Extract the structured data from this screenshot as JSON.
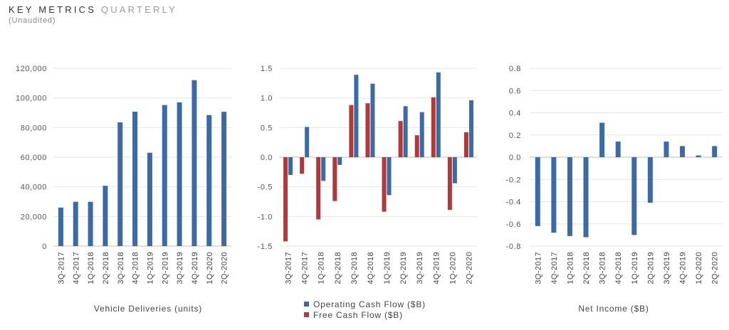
{
  "header": {
    "title_main": "KEY METRICS",
    "title_sub": "QUARTERLY",
    "subtitle": "(Unaudited)"
  },
  "colors": {
    "blue": "#3c6aa6",
    "red": "#b03a3a",
    "grid": "#e6e6e6",
    "axis": "#bdbdbd"
  },
  "chart_data": [
    {
      "type": "bar",
      "xlabel": "Vehicle Deliveries (units)",
      "categories": [
        "3Q-2017",
        "4Q-2017",
        "1Q-2018",
        "2Q-2018",
        "3Q-2018",
        "4Q-2018",
        "1Q-2019",
        "2Q-2019",
        "3Q-2019",
        "4Q-2019",
        "1Q-2020",
        "2Q-2020"
      ],
      "series": [
        {
          "values": [
            26000,
            29900,
            29900,
            40700,
            83500,
            90700,
            63000,
            95200,
            97000,
            112000,
            88400,
            90650
          ],
          "color": "#3c6aa6"
        }
      ],
      "ylim": [
        0,
        120000
      ],
      "yticks": [
        0,
        20000,
        40000,
        60000,
        80000,
        100000,
        120000
      ],
      "ytick_labels": [
        "0",
        "20,000",
        "40,000",
        "60,000",
        "80,000",
        "100,000",
        "120,000"
      ]
    },
    {
      "type": "bar",
      "xlabel": "",
      "categories": [
        "3Q-2017",
        "4Q-2017",
        "1Q-2018",
        "2Q-2018",
        "3Q-2018",
        "4Q-2018",
        "1Q-2019",
        "2Q-2019",
        "3Q-2019",
        "4Q-2019",
        "1Q-2020",
        "2Q-2020"
      ],
      "series": [
        {
          "name": "Free Cash Flow ($B)",
          "values": [
            -1.42,
            -0.28,
            -1.05,
            -0.74,
            0.88,
            0.91,
            -0.92,
            0.61,
            0.37,
            1.01,
            -0.89,
            0.42
          ],
          "color": "#b03a3a"
        },
        {
          "name": "Operating Cash Flow ($B)",
          "values": [
            -0.3,
            0.51,
            -0.4,
            -0.13,
            1.39,
            1.24,
            -0.64,
            0.86,
            0.76,
            1.43,
            -0.44,
            0.96
          ],
          "color": "#3c6aa6"
        }
      ],
      "ylim": [
        -1.5,
        1.5
      ],
      "yticks": [
        -1.5,
        -1.0,
        -0.5,
        0.0,
        0.5,
        1.0,
        1.5
      ],
      "ytick_labels": [
        "-1.5",
        "-1.0",
        "-0.5",
        "0.0",
        "0.5",
        "1.0",
        "1.5"
      ],
      "legend": {
        "placement": "bottom",
        "entries": [
          "Operating Cash Flow ($B)",
          "Free Cash Flow ($B)"
        ]
      }
    },
    {
      "type": "bar",
      "xlabel": "Net Income ($B)",
      "categories": [
        "3Q-2017",
        "4Q-2017",
        "1Q-2018",
        "2Q-2018",
        "3Q-2018",
        "4Q-2018",
        "1Q-2019",
        "2Q-2019",
        "3Q-2019",
        "4Q-2019",
        "1Q-2020",
        "2Q-2020"
      ],
      "series": [
        {
          "values": [
            -0.62,
            -0.68,
            -0.71,
            -0.72,
            0.31,
            0.14,
            -0.7,
            -0.41,
            0.14,
            0.1,
            0.016,
            0.1
          ],
          "color": "#3c6aa6"
        }
      ],
      "ylim": [
        -0.8,
        0.8
      ],
      "yticks": [
        -0.8,
        -0.6,
        -0.4,
        -0.2,
        0.0,
        0.2,
        0.4,
        0.6,
        0.8
      ],
      "ytick_labels": [
        "-0.8",
        "-0.6",
        "-0.4",
        "-0.2",
        "0.0",
        "0.2",
        "0.4",
        "0.6",
        "0.8"
      ]
    }
  ]
}
